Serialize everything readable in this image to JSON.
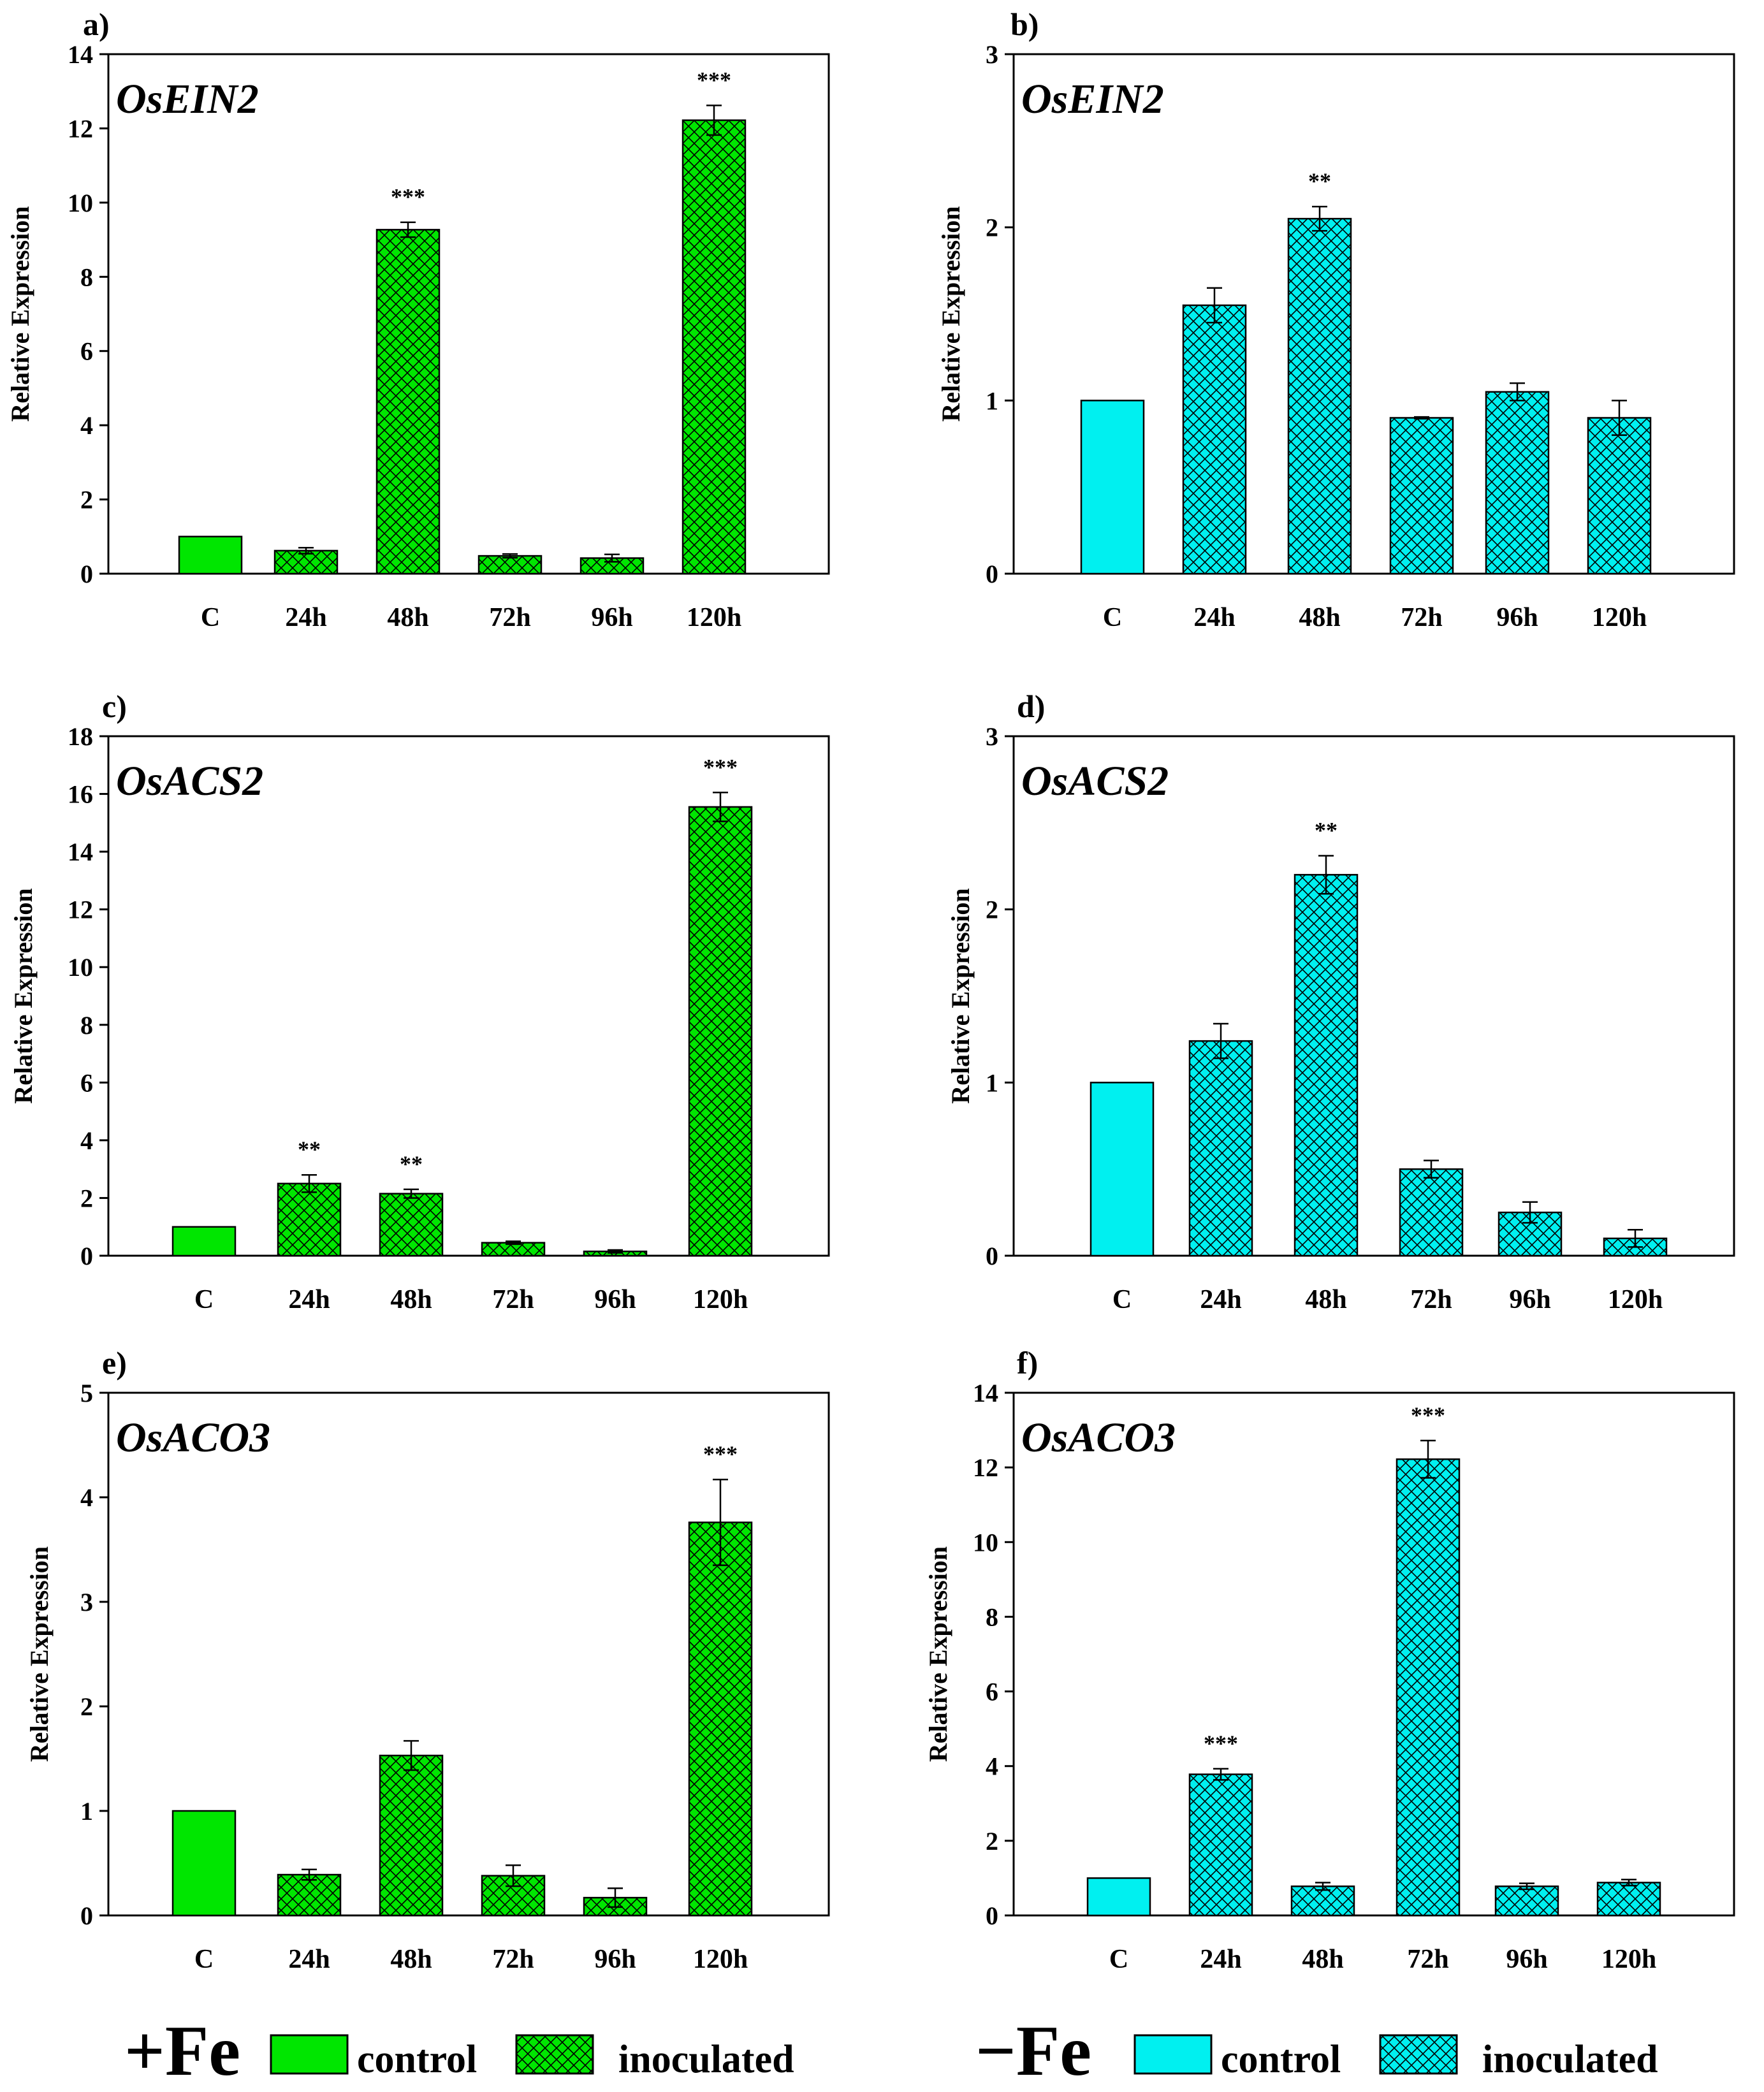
{
  "colors": {
    "plusFe": "#00e600",
    "minusFe": "#00f0f0",
    "hatch": "#000000"
  },
  "chart_data": [
    {
      "panel": "a)",
      "gene": "OsEIN2",
      "type": "bar",
      "ylabel": "Relative Expression",
      "categories": [
        "C",
        "24h",
        "48h",
        "72h",
        "96h",
        "120h"
      ],
      "values": [
        1.0,
        0.62,
        9.27,
        0.48,
        0.42,
        12.22
      ],
      "errors": [
        0,
        0.08,
        0.2,
        0.05,
        0.1,
        0.4
      ],
      "significance": [
        "",
        "",
        "***",
        "",
        "",
        "***"
      ],
      "ylim": [
        0,
        14
      ],
      "yticks": [
        0,
        2,
        4,
        6,
        8,
        10,
        12,
        14
      ],
      "group": "plusFe"
    },
    {
      "panel": "b)",
      "gene": "OsEIN2",
      "type": "bar",
      "ylabel": "Relative Expression",
      "categories": [
        "C",
        "24h",
        "48h",
        "72h",
        "96h",
        "120h"
      ],
      "values": [
        1.0,
        1.55,
        2.05,
        0.9,
        1.05,
        0.9
      ],
      "errors": [
        0,
        0.1,
        0.07,
        0.005,
        0.05,
        0.1
      ],
      "significance": [
        "",
        "",
        "**",
        "",
        "",
        ""
      ],
      "ylim": [
        0,
        3
      ],
      "yticks": [
        0,
        1,
        2,
        3
      ],
      "group": "minusFe"
    },
    {
      "panel": "c)",
      "gene": "OsACS2",
      "type": "bar",
      "ylabel": "Relative Expression",
      "categories": [
        "C",
        "24h",
        "48h",
        "72h",
        "96h",
        "120h"
      ],
      "values": [
        1.0,
        2.5,
        2.15,
        0.45,
        0.15,
        15.55
      ],
      "errors": [
        0,
        0.3,
        0.15,
        0.05,
        0.05,
        0.5
      ],
      "significance": [
        "",
        "**",
        "**",
        "",
        "",
        "***"
      ],
      "ylim": [
        0,
        18
      ],
      "yticks": [
        0,
        2,
        4,
        6,
        8,
        10,
        12,
        14,
        16,
        18
      ],
      "group": "plusFe"
    },
    {
      "panel": "d)",
      "gene": "OsACS2",
      "type": "bar",
      "ylabel": "Relative Expression",
      "categories": [
        "C",
        "24h",
        "48h",
        "72h",
        "96h",
        "120h"
      ],
      "values": [
        1.0,
        1.24,
        2.2,
        0.5,
        0.25,
        0.1
      ],
      "errors": [
        0,
        0.1,
        0.11,
        0.05,
        0.06,
        0.05
      ],
      "significance": [
        "",
        "",
        "**",
        "",
        "",
        ""
      ],
      "ylim": [
        0,
        3
      ],
      "yticks": [
        0,
        1,
        2,
        3
      ],
      "group": "minusFe"
    },
    {
      "panel": "e)",
      "gene": "OsACO3",
      "type": "bar",
      "ylabel": "Relative Expression",
      "categories": [
        "C",
        "24h",
        "48h",
        "72h",
        "96h",
        "120h"
      ],
      "values": [
        1.0,
        0.39,
        1.53,
        0.38,
        0.17,
        3.76
      ],
      "errors": [
        0,
        0.05,
        0.14,
        0.1,
        0.09,
        0.41
      ],
      "significance": [
        "",
        "",
        "",
        "",
        "",
        "***"
      ],
      "ylim": [
        0,
        5
      ],
      "yticks": [
        0,
        1,
        2,
        3,
        4,
        5
      ],
      "group": "plusFe"
    },
    {
      "panel": "f)",
      "gene": "OsACO3",
      "type": "bar",
      "ylabel": "Relative Expression",
      "categories": [
        "C",
        "24h",
        "48h",
        "72h",
        "96h",
        "120h"
      ],
      "values": [
        1.0,
        3.78,
        0.78,
        12.22,
        0.78,
        0.88
      ],
      "errors": [
        0,
        0.15,
        0.1,
        0.5,
        0.08,
        0.08
      ],
      "significance": [
        "",
        "***",
        "",
        "***",
        "",
        ""
      ],
      "ylim": [
        0,
        14
      ],
      "yticks": [
        0,
        2,
        4,
        6,
        8,
        10,
        12,
        14
      ],
      "group": "minusFe"
    }
  ],
  "legend": {
    "plusFe": {
      "title": "+Fe",
      "control": "control",
      "inoculated": "inoculated"
    },
    "minusFe": {
      "title": "−Fe",
      "control": "control",
      "inoculated": "inoculated"
    }
  }
}
